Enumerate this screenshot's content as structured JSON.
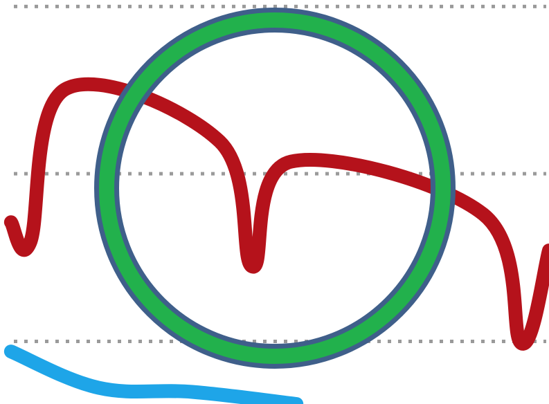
{
  "chart_data": {
    "type": "line",
    "grid": true,
    "legend": "none",
    "series": [
      {
        "color": "#b5121b",
        "values": [
          [
            0.02,
            0.55
          ],
          [
            0.055,
            0.6
          ],
          [
            0.12,
            0.22
          ],
          [
            0.4,
            0.35
          ],
          [
            0.46,
            0.66
          ],
          [
            0.53,
            0.4
          ],
          [
            0.88,
            0.53
          ],
          [
            0.95,
            0.85
          ],
          [
            1.0,
            0.62
          ]
        ]
      },
      {
        "color": "#1ea5e8",
        "values": [
          [
            0.02,
            0.87
          ],
          [
            0.18,
            0.96
          ],
          [
            0.35,
            0.97
          ],
          [
            0.54,
            1.0
          ]
        ]
      }
    ],
    "gridline_levels": [
      0.016,
      0.43,
      0.845
    ],
    "highlight": {
      "shape": "ring",
      "stroke_color": "#22b14c",
      "outline_color": "#3f5f8a"
    }
  }
}
